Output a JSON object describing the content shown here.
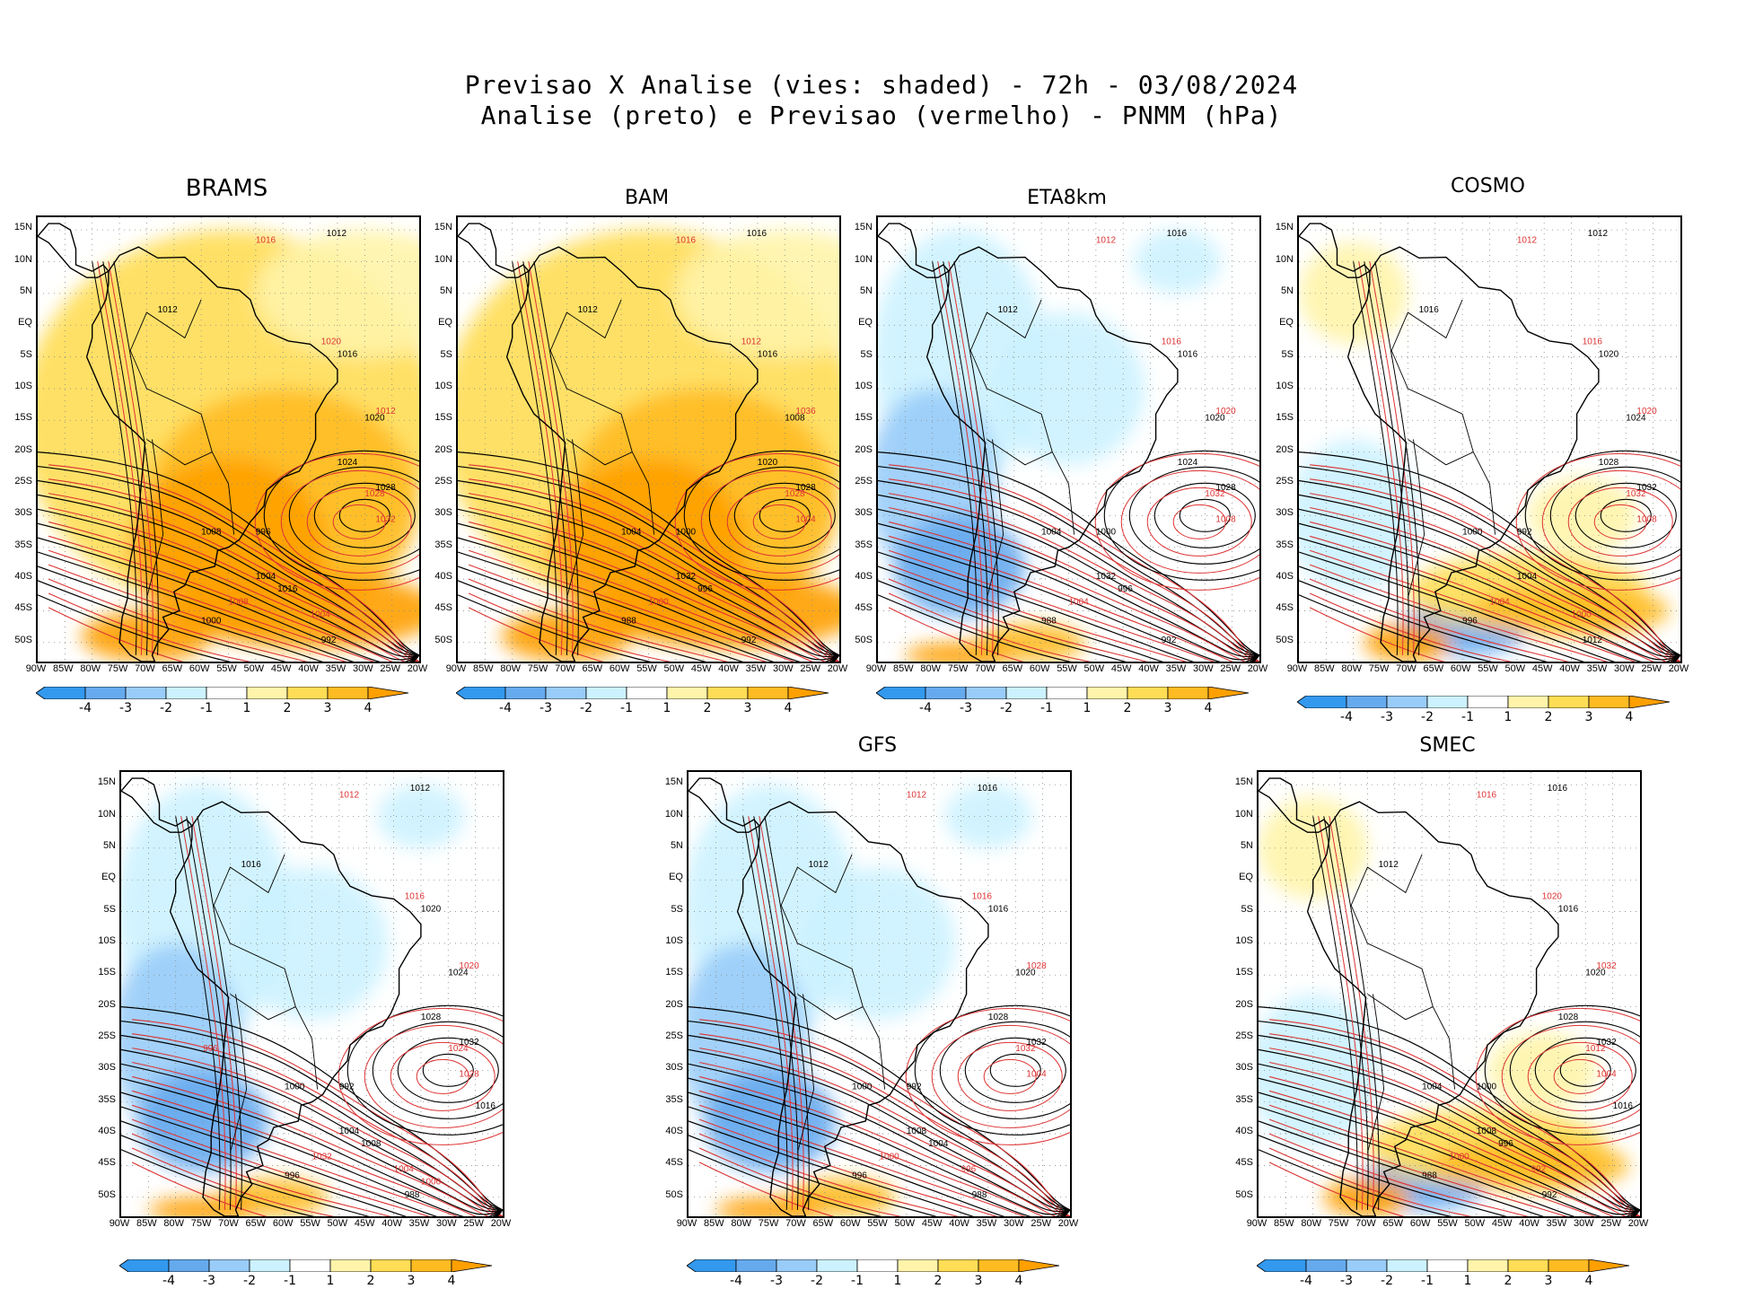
{
  "title": {
    "line1": "Previsao X Analise (vies: shaded) - 72h - 03/08/2024",
    "line2": "Analise (preto) e Previsao (vermelho) - PNMM (hPa)"
  },
  "lat_ticks": [
    "15N",
    "10N",
    "5N",
    "EQ",
    "5S",
    "10S",
    "15S",
    "20S",
    "25S",
    "30S",
    "35S",
    "40S",
    "45S",
    "50S"
  ],
  "lon_ticks": [
    "90W",
    "85W",
    "80W",
    "75W",
    "70W",
    "65W",
    "60W",
    "55W",
    "50W",
    "45W",
    "40W",
    "35W",
    "30W",
    "25W",
    "20W"
  ],
  "colorbar": {
    "labels": [
      "-4",
      "-3",
      "-2",
      "-1",
      "1",
      "2",
      "3",
      "4"
    ],
    "colors": [
      "#3399ee",
      "#66aaee",
      "#99ccf8",
      "#ccf2ff",
      "#ffffff",
      "#fff4aa",
      "#ffdd55",
      "#ffbb22",
      "#ffa000"
    ]
  },
  "panels": [
    {
      "name": "BRAMS",
      "bias": "positive",
      "labels_black": [
        "1012",
        "1012",
        "1016",
        "1020",
        "1024",
        "1028",
        "1004",
        "1008",
        "996",
        "992",
        "1000",
        "1016"
      ],
      "labels_red": [
        "1016",
        "1020",
        "1012",
        "1028",
        "1032",
        "1008",
        "1004"
      ]
    },
    {
      "name": "BAM",
      "bias": "positive",
      "labels_black": [
        "1016",
        "1012",
        "1016",
        "1008",
        "1020",
        "1028",
        "1032",
        "1004",
        "1000",
        "992",
        "988",
        "996"
      ],
      "labels_red": [
        "1016",
        "1012",
        "1036",
        "1028",
        "1004",
        "1000"
      ]
    },
    {
      "name": "ETA8km",
      "bias": "negative",
      "labels_black": [
        "1016",
        "1012",
        "1016",
        "1020",
        "1024",
        "1028",
        "1032",
        "1004",
        "1000",
        "992",
        "988",
        "996"
      ],
      "labels_red": [
        "1012",
        "1016",
        "1020",
        "1032",
        "1008",
        "1004"
      ]
    },
    {
      "name": "COSMO",
      "bias": "mixed",
      "labels_black": [
        "1012",
        "1016",
        "1020",
        "1024",
        "1028",
        "1032",
        "1004",
        "1000",
        "992",
        "1012",
        "996"
      ],
      "labels_red": [
        "1012",
        "1016",
        "1020",
        "1032",
        "1008",
        "1004",
        "1000"
      ]
    },
    {
      "name": "",
      "bias": "negative",
      "labels_black": [
        "1012",
        "1016",
        "1020",
        "1024",
        "1028",
        "1032",
        "1004",
        "1000",
        "992",
        "988",
        "996",
        "1008",
        "1016"
      ],
      "labels_red": [
        "1012",
        "1016",
        "1020",
        "1024",
        "1028",
        "1032",
        "1004",
        "1000",
        "996"
      ]
    },
    {
      "name": "GFS",
      "bias": "negative",
      "labels_black": [
        "1016",
        "1012",
        "1016",
        "1020",
        "1028",
        "1032",
        "1008",
        "1000",
        "992",
        "988",
        "996",
        "1004"
      ],
      "labels_red": [
        "1012",
        "1016",
        "1028",
        "1032",
        "1004",
        "1000",
        "996"
      ]
    },
    {
      "name": "SMEC",
      "bias": "mixed",
      "labels_black": [
        "1016",
        "1012",
        "1016",
        "1020",
        "1028",
        "1032",
        "1008",
        "1004",
        "1000",
        "992",
        "988",
        "996",
        "1016"
      ],
      "labels_red": [
        "1016",
        "1020",
        "1032",
        "1012",
        "1004",
        "1000",
        "992"
      ]
    }
  ]
}
